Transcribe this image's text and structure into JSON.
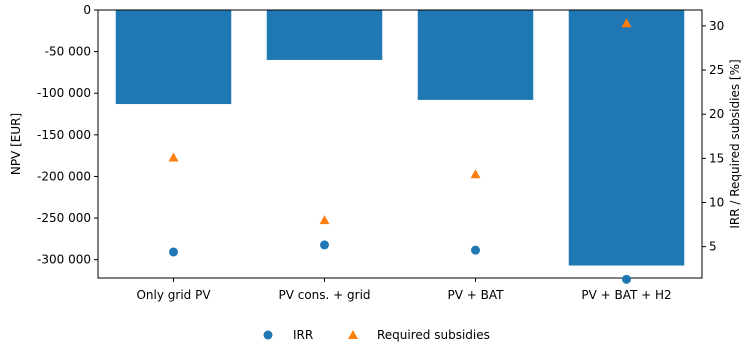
{
  "chart_data": {
    "type": "bar",
    "categories": [
      "Only grid PV",
      "PV cons. + grid",
      "PV + BAT",
      "PV + BAT + H2"
    ],
    "series": [
      {
        "name": "",
        "axis": "left",
        "kind": "bar",
        "values": [
          -113000,
          -60000,
          -108000,
          -307000
        ]
      },
      {
        "name": "IRR",
        "axis": "right",
        "kind": "scatter",
        "marker": "circle",
        "values": [
          4.4,
          5.2,
          4.6,
          1.3
        ]
      },
      {
        "name": "Required subsidies",
        "axis": "right",
        "kind": "scatter",
        "marker": "triangle",
        "values": [
          15.1,
          8.0,
          13.2,
          30.3
        ]
      }
    ],
    "ylabel": "NPV [EUR]",
    "ylabel_right": "IRR / Required subsidies [%]",
    "ylim": [
      -322000,
      0
    ],
    "ylim_right": [
      1.45,
      31.8
    ],
    "yticks": [
      {
        "value": 0,
        "label": "0"
      },
      {
        "value": -50000,
        "label": "-50 000"
      },
      {
        "value": -100000,
        "label": "-100 000"
      },
      {
        "value": -150000,
        "label": "-150 000"
      },
      {
        "value": -200000,
        "label": "-200 000"
      },
      {
        "value": -250000,
        "label": "-250 000"
      },
      {
        "value": -300000,
        "label": "-300 000"
      }
    ],
    "yticks_right": [
      {
        "value": 5,
        "label": "5"
      },
      {
        "value": 10,
        "label": "10"
      },
      {
        "value": 15,
        "label": "15"
      },
      {
        "value": 20,
        "label": "20"
      },
      {
        "value": 25,
        "label": "25"
      },
      {
        "value": 30,
        "label": "30"
      }
    ],
    "grid": false,
    "legend_position": "bottom-center",
    "colors": {
      "bar": "#1f77b4",
      "irr": "#1f77b4",
      "subsidies": "#ff7f0e"
    }
  }
}
